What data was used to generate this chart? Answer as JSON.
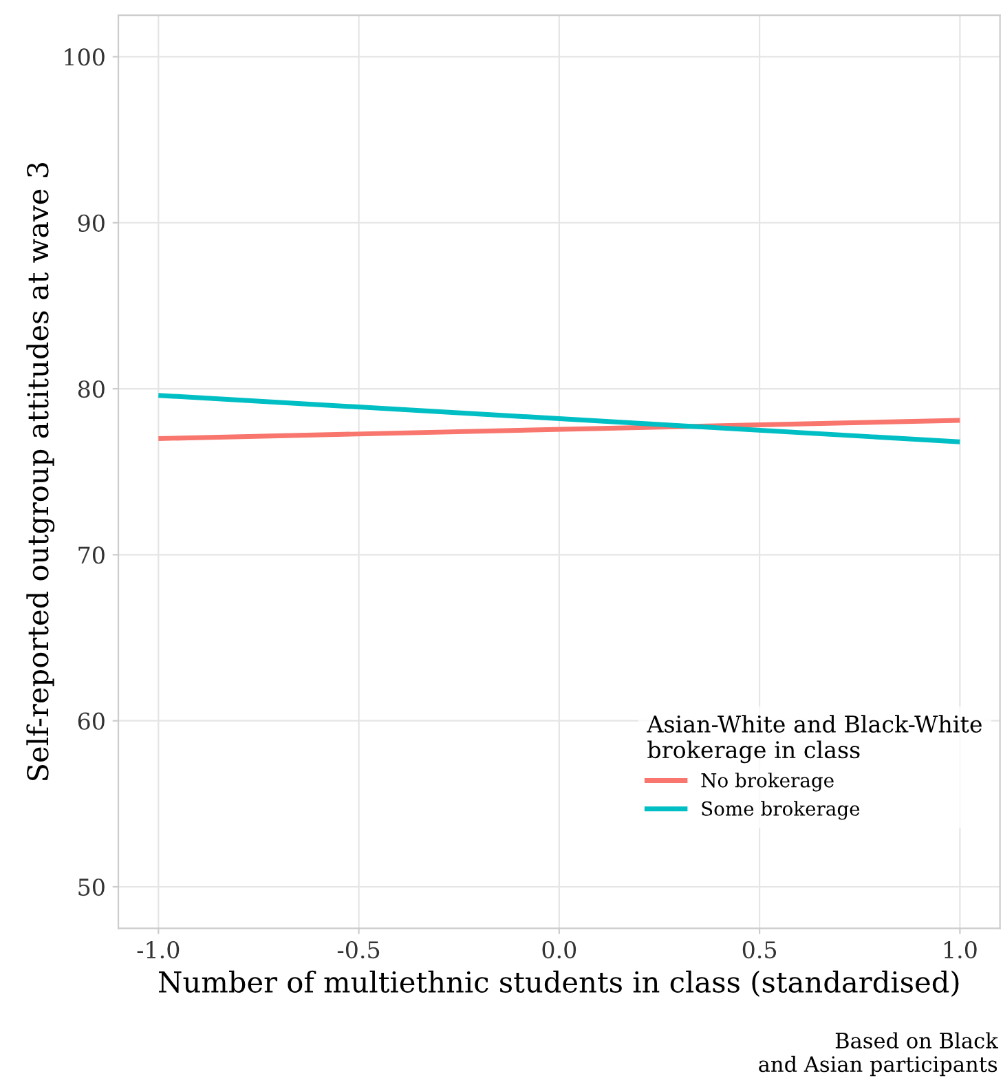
{
  "chart_data": {
    "type": "line",
    "xlabel": "Number of multiethnic students in class (standardised)",
    "ylabel": "Self-reported outgroup attitudes at wave 3",
    "legend_title": "Asian-White and Black-White\nbrokerage in class",
    "annotations": [
      "Based on Black\nand Asian participants"
    ],
    "x": [
      -1.0,
      1.0
    ],
    "series": [
      {
        "name": "No brokerage",
        "color": "#f8766d",
        "values": [
          77.0,
          78.1
        ]
      },
      {
        "name": "Some brokerage",
        "color": "#00bfc4",
        "values": [
          79.6,
          76.8
        ]
      }
    ],
    "xlim": [
      -1.1,
      1.1
    ],
    "ylim": [
      47.5,
      102.5
    ],
    "xticks": [
      {
        "value": -1.0,
        "label": "-1.0"
      },
      {
        "value": -0.5,
        "label": "-0.5"
      },
      {
        "value": 0.0,
        "label": "0.0"
      },
      {
        "value": 0.5,
        "label": "0.5"
      },
      {
        "value": 1.0,
        "label": "1.0"
      }
    ],
    "yticks": [
      50,
      60,
      70,
      80,
      90,
      100
    ],
    "grid": true,
    "legend": "bottom right",
    "line_style": "solid",
    "marker": "none"
  }
}
